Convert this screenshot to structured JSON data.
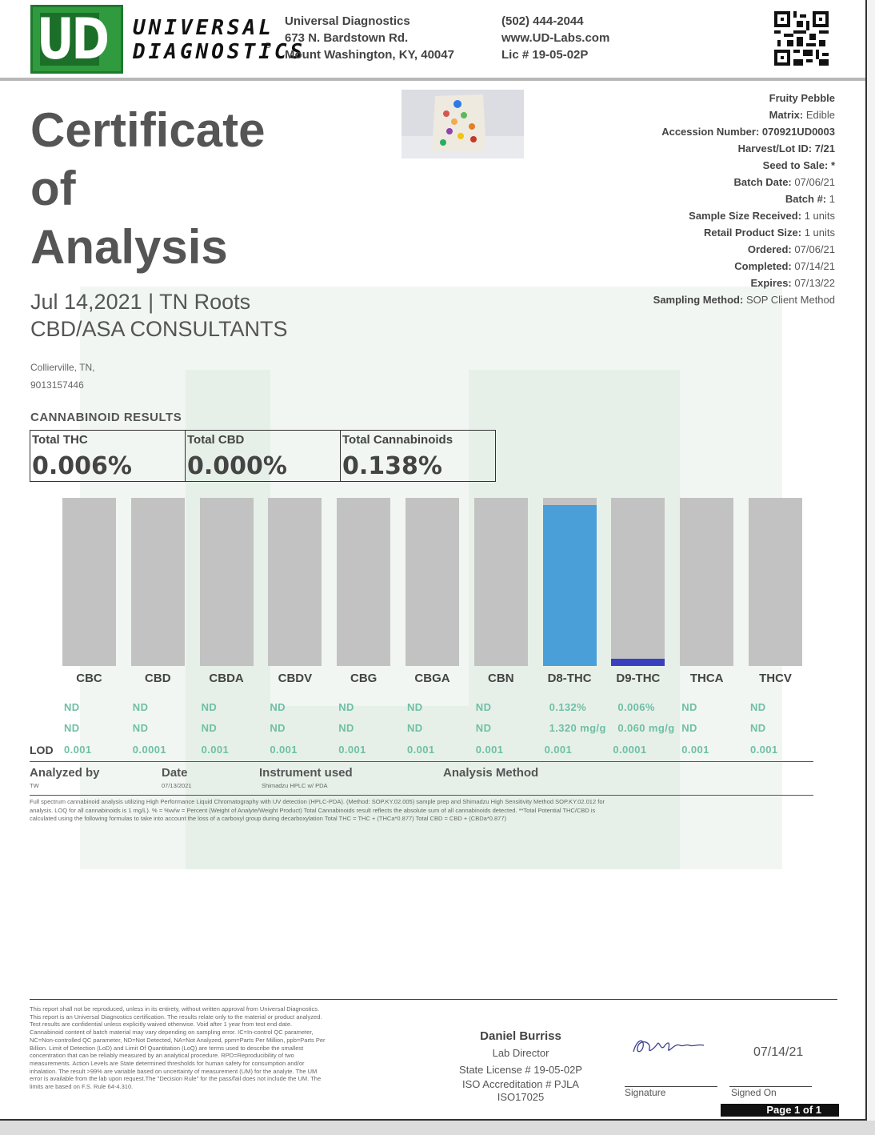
{
  "header": {
    "logo_letters": "UD",
    "brand_line1": "UNIVERSAL",
    "brand_line2": "DIAGNOSTICS",
    "registered": "®",
    "lab_name": "Universal Diagnostics",
    "address1": "673 N. Bardstown Rd.",
    "address2": "Mount Washington, KY, 40047",
    "phone": "(502) 444-2044",
    "website": "www.UD-Labs.com",
    "license": "Lic # 19-05-02P"
  },
  "title": {
    "line1": "Certificate",
    "line2": "of",
    "line3": "Analysis"
  },
  "client": {
    "date_line": "Jul 14,2021 | TN Roots",
    "company": "CBD/ASA CONSULTANTS",
    "city": "Collierville, TN,",
    "phone": "9013157446"
  },
  "meta": [
    {
      "label": "",
      "value": "Fruity Pebble"
    },
    {
      "label": "Matrix:",
      "value": "Edible"
    },
    {
      "label": "Accession Number:",
      "value": "070921UD0003"
    },
    {
      "label": "Harvest/Lot ID:",
      "value": "7/21"
    },
    {
      "label": "Seed to Sale:",
      "value": "*"
    },
    {
      "label": "Batch Date:",
      "value": "07/06/21"
    },
    {
      "label": "Batch #:",
      "value": "1"
    },
    {
      "label": "Sample Size Received:",
      "value": "1 units"
    },
    {
      "label": "Retail Product Size:",
      "value": "1 units"
    },
    {
      "label": "Ordered:",
      "value": "07/06/21"
    },
    {
      "label": "Completed:",
      "value": "07/14/21"
    },
    {
      "label": "Expires:",
      "value": "07/13/22"
    },
    {
      "label": "Sampling Method:",
      "value": "SOP Client Method"
    }
  ],
  "results": {
    "section_title": "CANNABINOID RESULTS",
    "totals": [
      {
        "label": "Total THC",
        "value": "0.006%"
      },
      {
        "label": "Total CBD",
        "value": "0.000%"
      },
      {
        "label": "Total Cannabinoids",
        "value": "0.138%"
      }
    ]
  },
  "chart_data": {
    "type": "bar",
    "categories": [
      "CBC",
      "CBD",
      "CBDA",
      "CBDV",
      "CBG",
      "CBGA",
      "CBN",
      "D8-THC",
      "D9-THC",
      "THCA",
      "THCV"
    ],
    "values": [
      0,
      0,
      0,
      0,
      0,
      0,
      0,
      0.132,
      0.006,
      0,
      0
    ],
    "fill_fraction": [
      0,
      0,
      0,
      0,
      0,
      0,
      0,
      0.955,
      0.043,
      0,
      0
    ],
    "percent_row": [
      "ND",
      "ND",
      "ND",
      "ND",
      "ND",
      "ND",
      "ND",
      "0.132%",
      "0.006%",
      "ND",
      "ND"
    ],
    "mg_row": [
      "ND",
      "ND",
      "ND",
      "ND",
      "ND",
      "ND",
      "ND",
      "1.320 mg/g",
      "0.060 mg/g",
      "ND",
      "ND"
    ],
    "lod_label": "LOD",
    "lod_row": [
      "0.001",
      "0.0001",
      "0.001",
      "0.001",
      "0.001",
      "0.001",
      "0.001",
      "0.001",
      "0.0001",
      "0.001",
      "0.001"
    ],
    "colors": {
      "background": "#c2c2c2",
      "D8-THC": "#4a9fd8",
      "D9-THC": "#3a3fbf"
    }
  },
  "analysis": {
    "headers": [
      "Analyzed by",
      "Date",
      "Instrument used",
      "Analysis Method"
    ],
    "values": [
      "TW",
      "07/13/2021",
      "Shimadzu HPLC w/ PDA",
      ""
    ],
    "note_line1": "Full spectrum cannabinoid analysis utilizing High Performance Liquid Chromatography with UV detection (HPLC-PDA). (Method: SOP.KY.02.005) sample prep and Shimadzu High Sensitivity Method SOP.KY.02.012 for",
    "note_line2": "analysis. LOQ for all cannabinoids is 1 mg/L). % = %w/w = Percent (Weight of Analyte/Weight Product) Total Cannabinoids result reflects the absolute sum of all cannabinoids detected. **Total Potential THC/CBD is",
    "note_line3": "calculated using the following formulas to take into account the loss of a carboxyl group during decarboxylation Total THC = THC + (THCa*0.877) Total CBD = CBD + (CBDa*0.877)"
  },
  "footer": {
    "disclaimer_lines": [
      "This report shall not be reproduced, unless in its entirety, without written approval from Universal Diagnostics.",
      "This report is an Universal Diagnostics certification. The results relate only to the material or product analyzed.",
      "Test results are confidential unless explicitly waived otherwise. Void after 1 year from test end date.",
      "Cannabinoid content of batch material may vary depending on sampling error. IC=In-control QC parameter,",
      "NC=Non-controlled QC parameter, ND=Not Detected, NA=Not Analyzed, ppm=Parts Per Million, ppb=Parts Per",
      "Billion. Limit of Detection (LoD) and Limit Of Quantitation (LoQ) are terms used to describe the smallest",
      "concentration that can be reliably measured by an analytical procedure. RPD=Reproducibility of two",
      "measurements. Action Levels are State determined thresholds for human safety for consumption and/or",
      "inhalation. The result >99% are variable based on uncertainty of measurement (UM) for the analyte. The UM",
      "error is available from the lab upon request.The \"Decision Rule\" for the pass/fail does not include the UM. The",
      "limits are based on F.S. Rule 64-4.310."
    ],
    "director_name": "Daniel Burriss",
    "director_title": "Lab Director",
    "state_license": "State License # 19-05-02P",
    "iso_line1": "ISO Accreditation # PJLA",
    "iso_line2": "ISO17025",
    "signed_date": "07/14/21",
    "signature_label": "Signature",
    "signed_on_label": "Signed On",
    "page_label": "Page 1 of 1"
  }
}
